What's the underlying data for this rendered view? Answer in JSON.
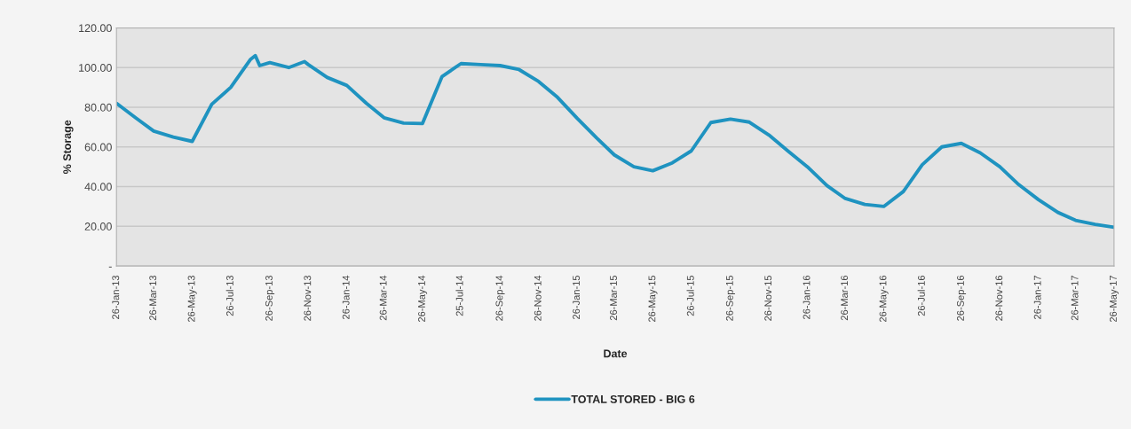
{
  "chart_data": {
    "type": "line",
    "xlabel": "Date",
    "ylabel": "% Storage",
    "x": [
      "2013-01-26",
      "2013-02-26",
      "2013-03-26",
      "2013-04-26",
      "2013-05-26",
      "2013-06-26",
      "2013-07-26",
      "2013-08-26",
      "2013-09-03",
      "2013-09-10",
      "2013-09-26",
      "2013-10-26",
      "2013-11-20",
      "2013-11-26",
      "2013-12-26",
      "2014-01-26",
      "2014-02-26",
      "2014-03-26",
      "2014-04-26",
      "2014-05-26",
      "2014-06-26",
      "2014-07-26",
      "2014-08-26",
      "2014-09-26",
      "2014-10-26",
      "2014-11-26",
      "2014-12-26",
      "2015-01-26",
      "2015-02-26",
      "2015-03-26",
      "2015-04-26",
      "2015-05-26",
      "2015-06-26",
      "2015-07-26",
      "2015-08-26",
      "2015-09-26",
      "2015-10-26",
      "2015-11-26",
      "2015-12-26",
      "2016-01-26",
      "2016-02-26",
      "2016-03-26",
      "2016-04-26",
      "2016-05-26",
      "2016-06-26",
      "2016-07-26",
      "2016-08-26",
      "2016-09-26",
      "2016-10-26",
      "2016-11-26",
      "2016-12-26",
      "2017-01-26",
      "2017-02-26",
      "2017-03-26",
      "2017-04-26",
      "2017-05-26"
    ],
    "series": [
      {
        "name": "TOTAL STORED - BIG 6",
        "color": "#1f93c0",
        "values": [
          82,
          74.5,
          68,
          65,
          62.8,
          81.5,
          90,
          104,
          106,
          101,
          102.5,
          100,
          103,
          101.5,
          95,
          91,
          82,
          74.7,
          72,
          71.8,
          95.5,
          102,
          101.5,
          101,
          99,
          93,
          85,
          74.5,
          64.5,
          56,
          50,
          48,
          52,
          58,
          72.3,
          74,
          72.5,
          66,
          58,
          50,
          40.5,
          34,
          31,
          30,
          37.5,
          51,
          60,
          61.8,
          57,
          50,
          41,
          33.5,
          27,
          23,
          21,
          19.5
        ]
      }
    ],
    "xlim": [
      "2013-01-26",
      "2017-05-26"
    ],
    "xticks": [
      {
        "value": "2013-01-26",
        "label": "26-Jan-13"
      },
      {
        "value": "2013-03-26",
        "label": "26-Mar-13"
      },
      {
        "value": "2013-05-26",
        "label": "26-May-13"
      },
      {
        "value": "2013-07-26",
        "label": "26-Jul-13"
      },
      {
        "value": "2013-09-26",
        "label": "26-Sep-13"
      },
      {
        "value": "2013-11-26",
        "label": "26-Nov-13"
      },
      {
        "value": "2014-01-26",
        "label": "26-Jan-14"
      },
      {
        "value": "2014-03-26",
        "label": "26-Mar-14"
      },
      {
        "value": "2014-05-26",
        "label": "26-May-14"
      },
      {
        "value": "2014-07-25",
        "label": "25-Jul-14"
      },
      {
        "value": "2014-09-26",
        "label": "26-Sep-14"
      },
      {
        "value": "2014-11-26",
        "label": "26-Nov-14"
      },
      {
        "value": "2015-01-26",
        "label": "26-Jan-15"
      },
      {
        "value": "2015-03-26",
        "label": "26-Mar-15"
      },
      {
        "value": "2015-05-26",
        "label": "26-May-15"
      },
      {
        "value": "2015-07-26",
        "label": "26-Jul-15"
      },
      {
        "value": "2015-09-26",
        "label": "26-Sep-15"
      },
      {
        "value": "2015-11-26",
        "label": "26-Nov-15"
      },
      {
        "value": "2016-01-26",
        "label": "26-Jan-16"
      },
      {
        "value": "2016-03-26",
        "label": "26-Mar-16"
      },
      {
        "value": "2016-05-26",
        "label": "26-May-16"
      },
      {
        "value": "2016-07-26",
        "label": "26-Jul-16"
      },
      {
        "value": "2016-09-26",
        "label": "26-Sep-16"
      },
      {
        "value": "2016-11-26",
        "label": "26-Nov-16"
      },
      {
        "value": "2017-01-26",
        "label": "26-Jan-17"
      },
      {
        "value": "2017-03-26",
        "label": "26-Mar-17"
      },
      {
        "value": "2017-05-26",
        "label": "26-May-17"
      }
    ],
    "ylim": [
      0,
      120
    ],
    "yticks": [
      {
        "value": 0,
        "label": "-"
      },
      {
        "value": 20,
        "label": "20.00"
      },
      {
        "value": 40,
        "label": "40.00"
      },
      {
        "value": 60,
        "label": "60.00"
      },
      {
        "value": 80,
        "label": "80.00"
      },
      {
        "value": 100,
        "label": "100.00"
      },
      {
        "value": 120,
        "label": "120.00"
      }
    ],
    "grid": "y",
    "legend": "bottom",
    "marker": "none",
    "line_style": "solid"
  }
}
